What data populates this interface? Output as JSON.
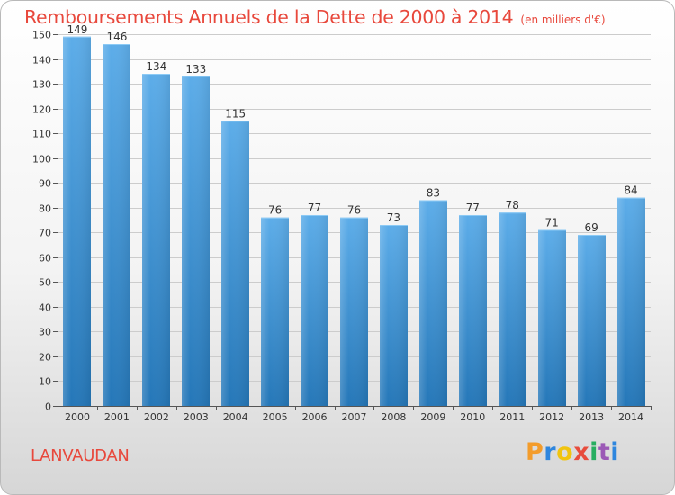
{
  "chart_data": {
    "type": "bar",
    "title": "Remboursements Annuels de la Dette de 2000 à 2014",
    "subtitle": "(en milliers d'€)",
    "categories": [
      "2000",
      "2001",
      "2002",
      "2003",
      "2004",
      "2005",
      "2006",
      "2007",
      "2008",
      "2009",
      "2010",
      "2011",
      "2012",
      "2013",
      "2014"
    ],
    "values": [
      149,
      146,
      134,
      133,
      115,
      76,
      77,
      76,
      73,
      83,
      77,
      78,
      71,
      69,
      84
    ],
    "ylim": [
      0,
      150
    ],
    "yticks": [
      0,
      10,
      20,
      30,
      40,
      50,
      60,
      70,
      80,
      90,
      100,
      110,
      120,
      130,
      140,
      150
    ],
    "grid": true,
    "xlabel": "",
    "ylabel": ""
  },
  "footer": {
    "location": "LANVAUDAN",
    "brand": {
      "letters": [
        "P",
        "r",
        "o",
        "x",
        "i",
        "t",
        "i"
      ],
      "colors": [
        "#f39c2b",
        "#2e86de",
        "#f1c40f",
        "#e74c3c",
        "#27ae60",
        "#9b59b6",
        "#2e86de"
      ]
    }
  },
  "colors": {
    "title": "#e8483c",
    "bar_light": "#5dade9",
    "bar_dark": "#2577b8",
    "grid": "#cccccc",
    "axis": "#555555"
  }
}
